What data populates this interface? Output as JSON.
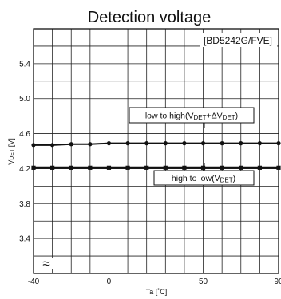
{
  "chart_data": {
    "type": "line",
    "title": "Detection voltage",
    "model_tag": "[BD5242G/FVE]",
    "xlabel": "Ta [˚C]",
    "ylabel_main": "V",
    "ylabel_sub": "DET",
    "ylabel_unit": " [V]",
    "xlim": [
      -40,
      90
    ],
    "ylim": [
      3.0,
      5.8
    ],
    "x_ticks": [
      -40,
      0,
      50,
      90
    ],
    "x_tick_labels": [
      "-40",
      "0",
      "50",
      "90"
    ],
    "y_ticks": [
      3.4,
      3.8,
      4.2,
      4.6,
      5.0,
      5.4
    ],
    "y_tick_labels": [
      "3.4",
      "3.8",
      "4.2",
      "4.6",
      "5.0",
      "5.4"
    ],
    "x_grid_step": 10,
    "y_grid_step": 0.2,
    "grid": true,
    "axis_break_symbol": "≈",
    "series": [
      {
        "label_parts": [
          "low to high(V",
          "DET",
          "+ΔV",
          "DET",
          ")"
        ],
        "x": [
          -40,
          -30,
          -20,
          -10,
          0,
          10,
          20,
          30,
          40,
          50,
          60,
          70,
          80,
          90
        ],
        "y": [
          4.47,
          4.47,
          4.48,
          4.48,
          4.49,
          4.49,
          4.49,
          4.49,
          4.49,
          4.49,
          4.49,
          4.49,
          4.49,
          4.49
        ]
      },
      {
        "label_parts": [
          "high to low(V",
          "DET",
          ")"
        ],
        "x": [
          -40,
          -30,
          -20,
          -10,
          0,
          10,
          20,
          30,
          40,
          50,
          60,
          70,
          80,
          90
        ],
        "y": [
          4.21,
          4.21,
          4.21,
          4.21,
          4.21,
          4.21,
          4.21,
          4.21,
          4.21,
          4.21,
          4.21,
          4.21,
          4.21,
          4.21
        ]
      }
    ]
  }
}
